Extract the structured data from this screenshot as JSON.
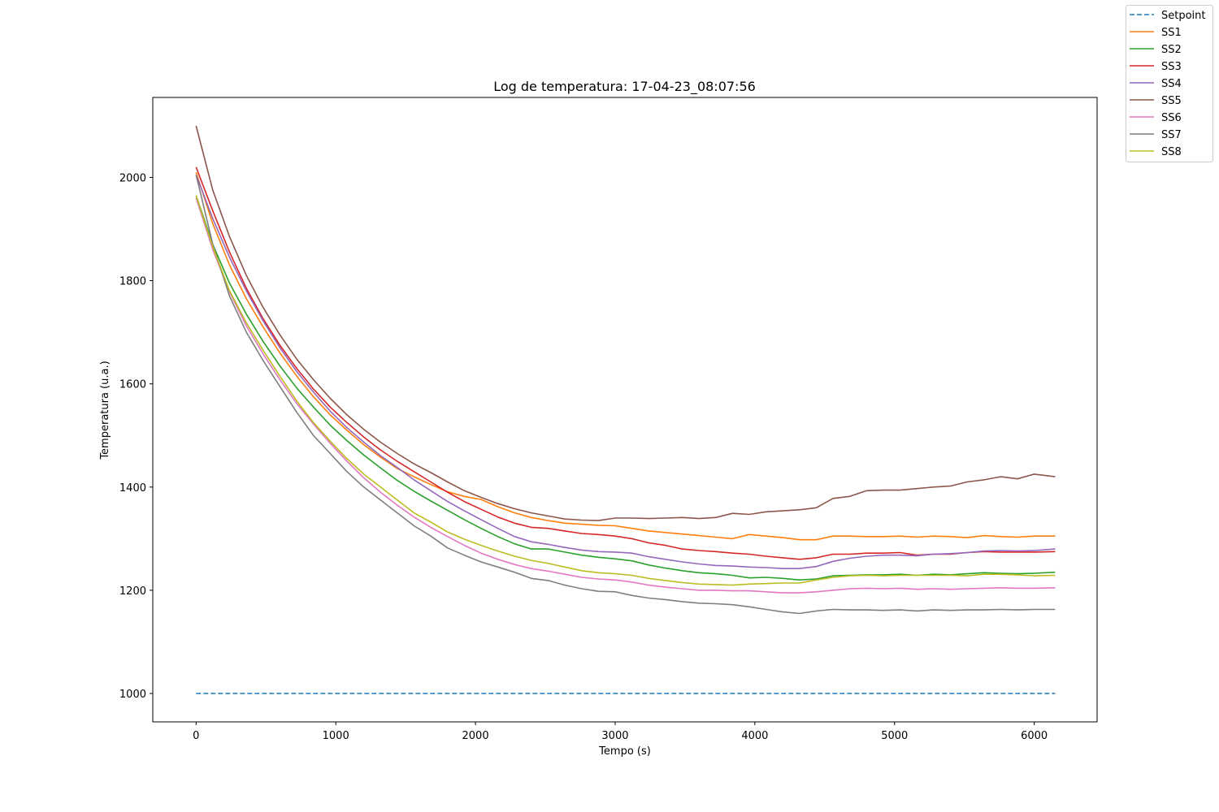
{
  "chart_data": {
    "type": "line",
    "title": "Log de temperatura: 17-04-23_08:07:56",
    "xlabel": "Tempo (s)",
    "ylabel": "Temperatura (u.a.)",
    "xlim": [
      -310,
      6450
    ],
    "ylim": [
      945,
      2155
    ],
    "xticks": [
      0,
      1000,
      2000,
      3000,
      4000,
      5000,
      6000
    ],
    "yticks": [
      1000,
      1200,
      1400,
      1600,
      1800,
      2000
    ],
    "grid": false,
    "legend_position": "outside-top-right",
    "x": [
      0,
      120,
      240,
      360,
      480,
      600,
      720,
      840,
      960,
      1080,
      1200,
      1320,
      1440,
      1560,
      1680,
      1800,
      1920,
      2040,
      2160,
      2280,
      2400,
      2520,
      2640,
      2760,
      2880,
      3000,
      3120,
      3240,
      3360,
      3480,
      3600,
      3720,
      3840,
      3960,
      4080,
      4200,
      4320,
      4440,
      4560,
      4680,
      4800,
      4920,
      5040,
      5160,
      5280,
      5400,
      5520,
      5640,
      5760,
      5880,
      6000,
      6150
    ],
    "series": [
      {
        "name": "Setpoint",
        "color": "#1f77b4",
        "dashed": true,
        "values": [
          1000,
          1000,
          1000,
          1000,
          1000,
          1000,
          1000,
          1000,
          1000,
          1000,
          1000,
          1000,
          1000,
          1000,
          1000,
          1000,
          1000,
          1000,
          1000,
          1000,
          1000,
          1000,
          1000,
          1000,
          1000,
          1000,
          1000,
          1000,
          1000,
          1000,
          1000,
          1000,
          1000,
          1000,
          1000,
          1000,
          1000,
          1000,
          1000,
          1000,
          1000,
          1000,
          1000,
          1000,
          1000,
          1000,
          1000,
          1000,
          1000,
          1000,
          1000,
          1000
        ]
      },
      {
        "name": "SS1",
        "color": "#ff7f0e",
        "values": [
          2010,
          1910,
          1830,
          1765,
          1710,
          1660,
          1615,
          1575,
          1540,
          1510,
          1482,
          1458,
          1436,
          1420,
          1405,
          1391,
          1382,
          1376,
          1362,
          1350,
          1341,
          1335,
          1330,
          1328,
          1326,
          1325,
          1320,
          1315,
          1312,
          1309,
          1306,
          1303,
          1300,
          1308,
          1305,
          1302,
          1298,
          1298,
          1305,
          1305,
          1304,
          1304,
          1305,
          1303,
          1305,
          1304,
          1302,
          1306,
          1304,
          1303,
          1305,
          1305
        ]
      },
      {
        "name": "SS2",
        "color": "#2ca02c",
        "values": [
          1965,
          1870,
          1795,
          1735,
          1682,
          1635,
          1592,
          1555,
          1520,
          1490,
          1462,
          1437,
          1413,
          1392,
          1373,
          1355,
          1337,
          1320,
          1304,
          1290,
          1280,
          1280,
          1274,
          1268,
          1264,
          1261,
          1257,
          1249,
          1243,
          1238,
          1234,
          1232,
          1229,
          1224,
          1225,
          1223,
          1220,
          1222,
          1228,
          1229,
          1230,
          1230,
          1231,
          1229,
          1231,
          1230,
          1232,
          1234,
          1233,
          1232,
          1233,
          1235
        ]
      },
      {
        "name": "SS3",
        "color": "#d62728",
        "values": [
          2020,
          1935,
          1855,
          1785,
          1726,
          1675,
          1630,
          1590,
          1555,
          1525,
          1497,
          1472,
          1450,
          1430,
          1410,
          1390,
          1372,
          1357,
          1342,
          1330,
          1322,
          1320,
          1315,
          1310,
          1308,
          1305,
          1300,
          1292,
          1287,
          1280,
          1277,
          1275,
          1272,
          1270,
          1266,
          1263,
          1260,
          1263,
          1270,
          1270,
          1272,
          1272,
          1273,
          1268,
          1270,
          1270,
          1273,
          1275,
          1274,
          1274,
          1274,
          1275
        ]
      },
      {
        "name": "SS4",
        "color": "#9467bd",
        "values": [
          2005,
          1920,
          1845,
          1780,
          1722,
          1670,
          1624,
          1584,
          1547,
          1515,
          1487,
          1461,
          1438,
          1414,
          1393,
          1372,
          1354,
          1337,
          1320,
          1304,
          1294,
          1289,
          1283,
          1278,
          1275,
          1274,
          1272,
          1265,
          1260,
          1255,
          1251,
          1248,
          1247,
          1245,
          1244,
          1242,
          1242,
          1246,
          1256,
          1262,
          1266,
          1268,
          1268,
          1267,
          1270,
          1271,
          1273,
          1276,
          1277,
          1276,
          1277,
          1280
        ]
      },
      {
        "name": "SS5",
        "color": "#8c564b",
        "values": [
          2100,
          1975,
          1885,
          1810,
          1748,
          1695,
          1648,
          1608,
          1572,
          1540,
          1512,
          1487,
          1465,
          1445,
          1428,
          1410,
          1393,
          1380,
          1368,
          1358,
          1350,
          1344,
          1338,
          1336,
          1335,
          1340,
          1340,
          1339,
          1340,
          1341,
          1339,
          1341,
          1349,
          1347,
          1352,
          1354,
          1356,
          1360,
          1378,
          1382,
          1393,
          1394,
          1394,
          1397,
          1400,
          1402,
          1410,
          1414,
          1420,
          1416,
          1425,
          1420
        ]
      },
      {
        "name": "SS6",
        "color": "#e377c2",
        "values": [
          1960,
          1860,
          1778,
          1712,
          1658,
          1608,
          1562,
          1522,
          1485,
          1450,
          1418,
          1390,
          1365,
          1342,
          1322,
          1304,
          1287,
          1272,
          1260,
          1250,
          1242,
          1237,
          1231,
          1225,
          1222,
          1220,
          1216,
          1210,
          1206,
          1203,
          1200,
          1200,
          1199,
          1199,
          1197,
          1195,
          1195,
          1197,
          1200,
          1203,
          1204,
          1203,
          1204,
          1202,
          1203,
          1202,
          1203,
          1204,
          1205,
          1204,
          1204,
          1205
        ]
      },
      {
        "name": "SS7",
        "color": "#7f7f7f",
        "values": [
          2005,
          1870,
          1770,
          1700,
          1645,
          1595,
          1545,
          1500,
          1465,
          1430,
          1400,
          1375,
          1350,
          1325,
          1305,
          1282,
          1268,
          1255,
          1245,
          1235,
          1223,
          1219,
          1210,
          1203,
          1198,
          1197,
          1190,
          1185,
          1182,
          1178,
          1175,
          1174,
          1172,
          1168,
          1163,
          1158,
          1155,
          1160,
          1163,
          1162,
          1162,
          1161,
          1162,
          1160,
          1162,
          1161,
          1162,
          1162,
          1163,
          1162,
          1163,
          1163
        ]
      },
      {
        "name": "SS8",
        "color": "#bcbd22",
        "values": [
          1965,
          1865,
          1780,
          1718,
          1665,
          1615,
          1567,
          1525,
          1489,
          1455,
          1425,
          1400,
          1375,
          1350,
          1332,
          1313,
          1299,
          1287,
          1276,
          1266,
          1258,
          1252,
          1245,
          1238,
          1234,
          1232,
          1229,
          1223,
          1219,
          1215,
          1212,
          1211,
          1210,
          1212,
          1213,
          1214,
          1214,
          1220,
          1225,
          1228,
          1229,
          1228,
          1229,
          1229,
          1229,
          1229,
          1228,
          1231,
          1231,
          1230,
          1228,
          1229
        ]
      }
    ]
  }
}
